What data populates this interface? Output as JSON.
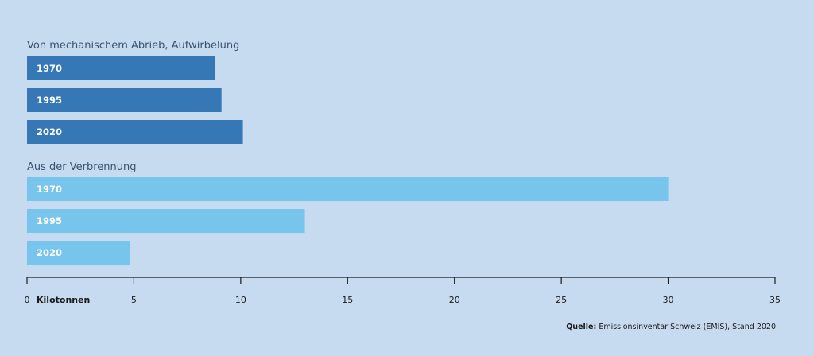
{
  "chart_data": {
    "type": "bar",
    "orientation": "horizontal",
    "groups": [
      {
        "title": "Von mechanischem Abrieb, Aufwirbelung",
        "color": "#3678b6",
        "categories": [
          "1970",
          "1995",
          "2020"
        ],
        "values": [
          8.8,
          9.1,
          10.1
        ]
      },
      {
        "title": "Aus der Verbrennung",
        "color": "#77c4ec",
        "categories": [
          "1970",
          "1995",
          "2020"
        ],
        "values": [
          30.0,
          13.0,
          4.8
        ]
      }
    ],
    "xlim": [
      0,
      35
    ],
    "xticks": [
      "0",
      "5",
      "10",
      "15",
      "20",
      "25",
      "30",
      "35"
    ],
    "xlabel": "Kilotonnen",
    "grid": false
  },
  "source": {
    "label": "Quelle:",
    "text": "Emissionsinventar Schweiz (EMIS), Stand 2020"
  }
}
